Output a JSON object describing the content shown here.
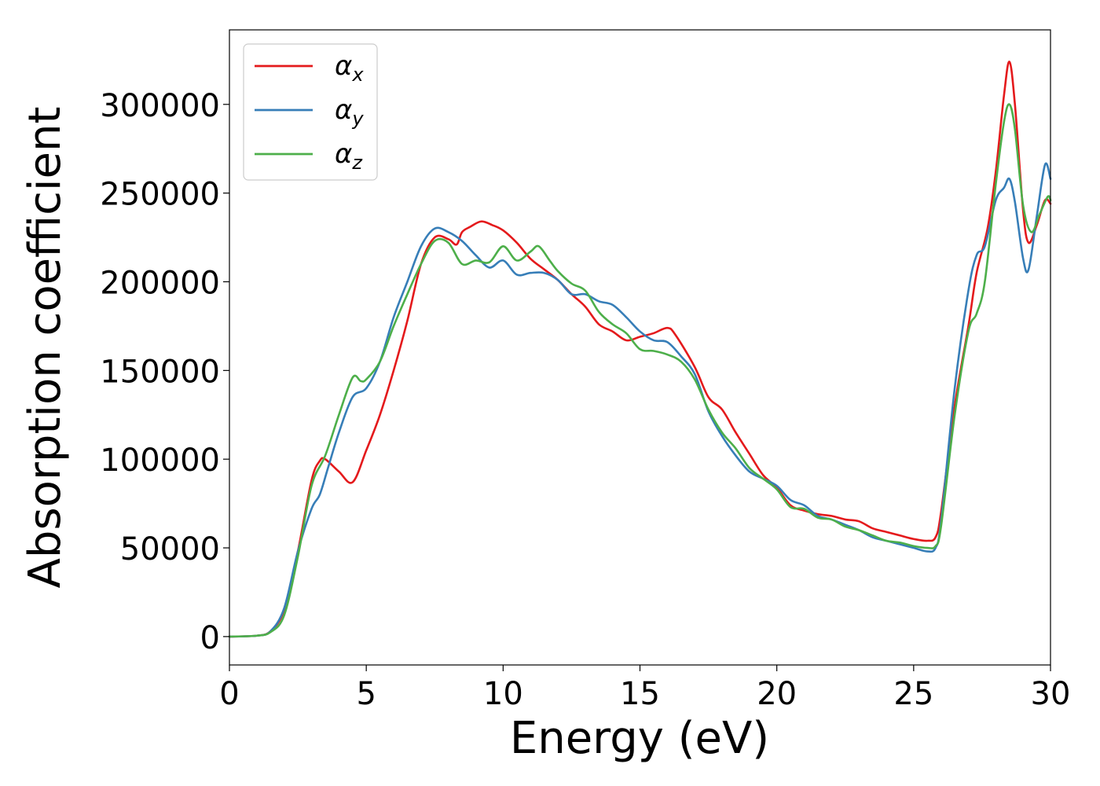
{
  "chart_data": {
    "type": "line",
    "title": "",
    "xlabel": "Energy (eV)",
    "ylabel": "Absorption coefficient",
    "xlim": [
      0,
      30
    ],
    "ylim": [
      -16000,
      342000
    ],
    "xticks": [
      0,
      5,
      10,
      15,
      20,
      25,
      30
    ],
    "yticks": [
      0,
      50000,
      100000,
      150000,
      200000,
      250000,
      300000
    ],
    "xtick_labels": [
      "0",
      "5",
      "10",
      "15",
      "20",
      "25",
      "30"
    ],
    "ytick_labels": [
      "0",
      "50000",
      "100000",
      "150000",
      "200000",
      "250000",
      "300000"
    ],
    "grid": false,
    "legend_position": "top-left",
    "series": [
      {
        "name": "α_x",
        "legend_base": "α",
        "legend_sub": "x",
        "color": "#e41a1c",
        "points": [
          [
            0,
            0
          ],
          [
            1,
            500
          ],
          [
            1.5,
            3000
          ],
          [
            2,
            15000
          ],
          [
            2.5,
            48000
          ],
          [
            3,
            88000
          ],
          [
            3.3,
            99000
          ],
          [
            3.5,
            100000
          ],
          [
            4,
            93000
          ],
          [
            4.5,
            87000
          ],
          [
            5,
            105000
          ],
          [
            5.5,
            125000
          ],
          [
            6,
            150000
          ],
          [
            6.5,
            178000
          ],
          [
            7,
            210000
          ],
          [
            7.5,
            225000
          ],
          [
            8,
            224000
          ],
          [
            8.3,
            221000
          ],
          [
            8.5,
            228000
          ],
          [
            8.8,
            231000
          ],
          [
            9.2,
            234000
          ],
          [
            9.6,
            232000
          ],
          [
            10,
            229000
          ],
          [
            10.5,
            222000
          ],
          [
            11,
            213000
          ],
          [
            11.5,
            207000
          ],
          [
            12,
            201000
          ],
          [
            12.5,
            193000
          ],
          [
            13,
            186000
          ],
          [
            13.5,
            176000
          ],
          [
            14,
            172000
          ],
          [
            14.5,
            167000
          ],
          [
            15,
            169000
          ],
          [
            15.5,
            171000
          ],
          [
            16,
            174000
          ],
          [
            16.3,
            170000
          ],
          [
            17,
            152000
          ],
          [
            17.5,
            135000
          ],
          [
            18,
            128000
          ],
          [
            18.5,
            115000
          ],
          [
            19,
            103000
          ],
          [
            19.5,
            91000
          ],
          [
            20,
            84000
          ],
          [
            20.5,
            74000
          ],
          [
            21,
            71000
          ],
          [
            21.5,
            69000
          ],
          [
            22,
            68000
          ],
          [
            22.5,
            66000
          ],
          [
            23,
            65000
          ],
          [
            23.5,
            61000
          ],
          [
            24,
            59000
          ],
          [
            24.5,
            57000
          ],
          [
            25,
            55000
          ],
          [
            25.5,
            54000
          ],
          [
            25.8,
            56000
          ],
          [
            26,
            70000
          ],
          [
            26.5,
            130000
          ],
          [
            27,
            175000
          ],
          [
            27.3,
            205000
          ],
          [
            27.7,
            230000
          ],
          [
            28,
            262000
          ],
          [
            28.3,
            305000
          ],
          [
            28.5,
            324000
          ],
          [
            28.7,
            300000
          ],
          [
            29,
            240000
          ],
          [
            29.2,
            222000
          ],
          [
            29.5,
            232000
          ],
          [
            29.8,
            246000
          ],
          [
            30,
            244000
          ]
        ]
      },
      {
        "name": "α_y",
        "legend_base": "α",
        "legend_sub": "y",
        "color": "#377eb8",
        "points": [
          [
            0,
            0
          ],
          [
            1,
            500
          ],
          [
            1.5,
            3000
          ],
          [
            2,
            16000
          ],
          [
            2.5,
            48000
          ],
          [
            3,
            72000
          ],
          [
            3.3,
            80000
          ],
          [
            3.6,
            95000
          ],
          [
            4,
            115000
          ],
          [
            4.5,
            135000
          ],
          [
            5,
            140000
          ],
          [
            5.5,
            155000
          ],
          [
            6,
            180000
          ],
          [
            6.5,
            200000
          ],
          [
            7,
            220000
          ],
          [
            7.5,
            230000
          ],
          [
            8,
            228000
          ],
          [
            8.5,
            223000
          ],
          [
            9,
            215000
          ],
          [
            9.5,
            208000
          ],
          [
            10,
            212000
          ],
          [
            10.5,
            204000
          ],
          [
            11,
            205000
          ],
          [
            11.5,
            205000
          ],
          [
            12,
            201000
          ],
          [
            12.5,
            193000
          ],
          [
            13,
            193000
          ],
          [
            13.5,
            189000
          ],
          [
            14,
            187000
          ],
          [
            14.5,
            180000
          ],
          [
            15,
            172000
          ],
          [
            15.5,
            167000
          ],
          [
            16,
            166000
          ],
          [
            16.5,
            158000
          ],
          [
            17,
            148000
          ],
          [
            17.5,
            127000
          ],
          [
            18,
            113000
          ],
          [
            18.5,
            102000
          ],
          [
            19,
            93000
          ],
          [
            19.5,
            89000
          ],
          [
            20,
            85000
          ],
          [
            20.5,
            77000
          ],
          [
            21,
            74000
          ],
          [
            21.5,
            68000
          ],
          [
            22,
            66000
          ],
          [
            22.5,
            63000
          ],
          [
            23,
            60000
          ],
          [
            23.5,
            56000
          ],
          [
            24,
            54000
          ],
          [
            24.5,
            52000
          ],
          [
            25,
            50000
          ],
          [
            25.5,
            48000
          ],
          [
            25.8,
            50000
          ],
          [
            26,
            65000
          ],
          [
            26.5,
            140000
          ],
          [
            27,
            195000
          ],
          [
            27.3,
            215000
          ],
          [
            27.6,
            220000
          ],
          [
            28,
            246000
          ],
          [
            28.3,
            253000
          ],
          [
            28.5,
            258000
          ],
          [
            28.7,
            245000
          ],
          [
            29,
            213000
          ],
          [
            29.2,
            207000
          ],
          [
            29.5,
            237000
          ],
          [
            29.8,
            266000
          ],
          [
            30,
            258000
          ]
        ]
      },
      {
        "name": "α_z",
        "legend_base": "α",
        "legend_sub": "z",
        "color": "#4daf4a",
        "points": [
          [
            0,
            0
          ],
          [
            1,
            500
          ],
          [
            1.5,
            2500
          ],
          [
            2,
            12000
          ],
          [
            2.5,
            45000
          ],
          [
            3,
            85000
          ],
          [
            3.5,
            102000
          ],
          [
            4,
            125000
          ],
          [
            4.5,
            146000
          ],
          [
            4.8,
            144000
          ],
          [
            5,
            145000
          ],
          [
            5.5,
            155000
          ],
          [
            6,
            175000
          ],
          [
            6.5,
            193000
          ],
          [
            7,
            210000
          ],
          [
            7.5,
            223000
          ],
          [
            8,
            222000
          ],
          [
            8.5,
            210000
          ],
          [
            9,
            212000
          ],
          [
            9.5,
            211000
          ],
          [
            10,
            220000
          ],
          [
            10.5,
            212000
          ],
          [
            11,
            217000
          ],
          [
            11.3,
            220000
          ],
          [
            11.7,
            212000
          ],
          [
            12,
            206000
          ],
          [
            12.5,
            199000
          ],
          [
            13,
            195000
          ],
          [
            13.5,
            183000
          ],
          [
            14,
            176000
          ],
          [
            14.5,
            171000
          ],
          [
            15,
            162000
          ],
          [
            15.5,
            161000
          ],
          [
            16,
            159000
          ],
          [
            16.5,
            155000
          ],
          [
            17,
            145000
          ],
          [
            17.5,
            128000
          ],
          [
            18,
            115000
          ],
          [
            18.5,
            106000
          ],
          [
            19,
            95000
          ],
          [
            19.5,
            89000
          ],
          [
            20,
            83000
          ],
          [
            20.5,
            73000
          ],
          [
            21,
            72000
          ],
          [
            21.5,
            67000
          ],
          [
            22,
            66000
          ],
          [
            22.5,
            62000
          ],
          [
            23,
            60000
          ],
          [
            23.5,
            57000
          ],
          [
            24,
            54000
          ],
          [
            24.5,
            53000
          ],
          [
            25,
            51000
          ],
          [
            25.5,
            50000
          ],
          [
            25.8,
            51000
          ],
          [
            26,
            62000
          ],
          [
            26.5,
            125000
          ],
          [
            27,
            172000
          ],
          [
            27.3,
            182000
          ],
          [
            27.6,
            200000
          ],
          [
            28,
            255000
          ],
          [
            28.3,
            290000
          ],
          [
            28.5,
            300000
          ],
          [
            28.7,
            286000
          ],
          [
            29,
            243000
          ],
          [
            29.3,
            228000
          ],
          [
            29.6,
            238000
          ],
          [
            29.9,
            248000
          ],
          [
            30,
            246000
          ]
        ]
      }
    ]
  }
}
